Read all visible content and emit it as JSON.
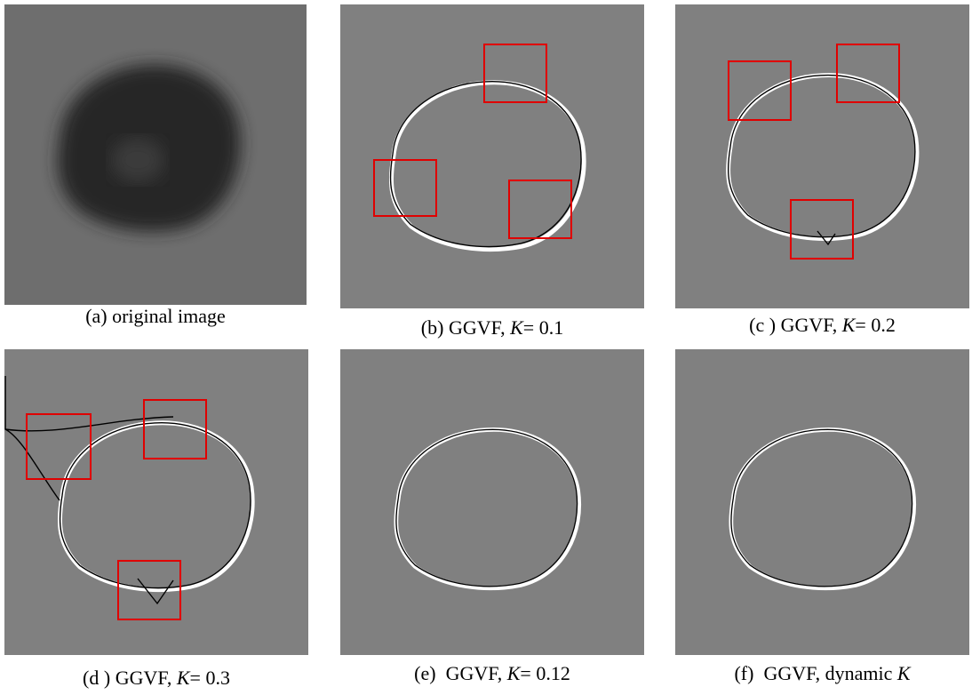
{
  "panels": [
    {
      "caption": [
        {
          "text": "(a) original image",
          "italic": false
        }
      ]
    },
    {
      "caption": [
        {
          "text": "(b) GGVF, ",
          "italic": false
        },
        {
          "text": "K",
          "italic": true
        },
        {
          "text": "= 0.1",
          "italic": false
        }
      ]
    },
    {
      "caption": [
        {
          "text": "(c ) GGVF, ",
          "italic": false
        },
        {
          "text": "K",
          "italic": true
        },
        {
          "text": "= 0.2",
          "italic": false
        }
      ]
    },
    {
      "caption": [
        {
          "text": "(d ) GGVF, ",
          "italic": false
        },
        {
          "text": "K",
          "italic": true
        },
        {
          "text": "= 0.3",
          "italic": false
        }
      ]
    },
    {
      "caption": [
        {
          "text": "(e)  GGVF, ",
          "italic": false
        },
        {
          "text": "K",
          "italic": true
        },
        {
          "text": "= 0.12",
          "italic": false
        }
      ]
    },
    {
      "caption": [
        {
          "text": "(f)  GGVF, dynamic ",
          "italic": false
        },
        {
          "text": "K",
          "italic": true
        }
      ]
    }
  ]
}
